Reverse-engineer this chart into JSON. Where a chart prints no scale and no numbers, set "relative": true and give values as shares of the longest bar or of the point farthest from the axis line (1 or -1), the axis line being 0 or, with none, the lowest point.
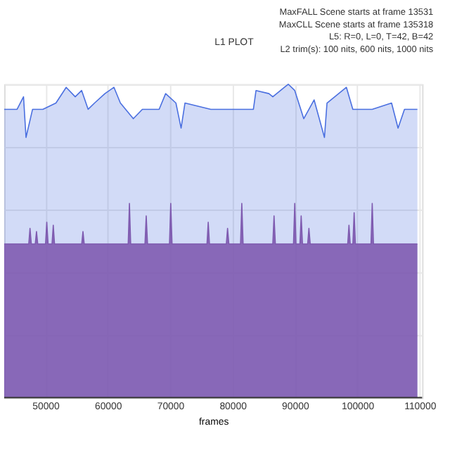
{
  "chart_data": {
    "type": "area",
    "title": "L1 PLOT",
    "xlabel": "frames",
    "relative": true,
    "grid": true,
    "annotations": [
      "MaxFALL Scene starts at frame 13531",
      "MaxCLL Scene starts at frame 135318",
      "L5: R=0, L=0, T=42, B=42",
      "L2 trim(s): 100 nits, 600 nits, 1000 nits"
    ],
    "xlim": [
      43400,
      110400
    ],
    "xticks": [
      50000,
      60000,
      70000,
      80000,
      90000,
      100000,
      110000
    ],
    "series": [
      {
        "color": "#4a6fe0",
        "x": [
          43400,
          45470,
          46500,
          46900,
          47950,
          49600,
          51700,
          53340,
          54790,
          55820,
          56860,
          57890,
          59550,
          61000,
          62030,
          64100,
          65550,
          68240,
          69280,
          70930,
          71760,
          72380,
          76520,
          79630,
          83350,
          83770,
          85840,
          86460,
          88320,
          88940,
          89980,
          91420,
          93080,
          94740,
          95150,
          98260,
          99290,
          102400,
          105500,
          106540,
          107570,
          109640
        ],
        "values": [
          0.92,
          0.92,
          0.96,
          0.83,
          0.92,
          0.92,
          0.94,
          0.99,
          0.96,
          0.98,
          0.92,
          0.94,
          0.97,
          0.99,
          0.94,
          0.89,
          0.92,
          0.92,
          0.97,
          0.94,
          0.86,
          0.94,
          0.92,
          0.92,
          0.92,
          0.98,
          0.97,
          0.96,
          0.99,
          1.0,
          0.98,
          0.89,
          0.95,
          0.83,
          0.94,
          0.99,
          0.92,
          0.92,
          0.94,
          0.86,
          0.92,
          0.92
        ]
      },
      {
        "color": "#7f5bb0",
        "x": [
          43400,
          47340,
          47540,
          47750,
          48380,
          48580,
          48780,
          50030,
          50230,
          50440,
          51070,
          51270,
          51470,
          55830,
          56030,
          56230,
          63280,
          63480,
          63680,
          65970,
          66170,
          66380,
          69900,
          70100,
          70310,
          75910,
          76110,
          76310,
          79010,
          79210,
          79420,
          81290,
          81490,
          81700,
          86460,
          86660,
          86870,
          89780,
          89980,
          90180,
          90810,
          91010,
          91220,
          92050,
          92250,
          92460,
          98470,
          98670,
          98870,
          99300,
          99500,
          99700,
          102200,
          102400,
          102600,
          109640
        ],
        "values": [
          0.49,
          0.49,
          0.54,
          0.49,
          0.49,
          0.53,
          0.49,
          0.49,
          0.56,
          0.49,
          0.49,
          0.55,
          0.49,
          0.49,
          0.53,
          0.49,
          0.49,
          0.62,
          0.49,
          0.49,
          0.58,
          0.49,
          0.49,
          0.62,
          0.49,
          0.49,
          0.56,
          0.49,
          0.49,
          0.54,
          0.49,
          0.49,
          0.62,
          0.49,
          0.49,
          0.58,
          0.49,
          0.49,
          0.62,
          0.49,
          0.49,
          0.58,
          0.49,
          0.49,
          0.54,
          0.49,
          0.49,
          0.55,
          0.49,
          0.49,
          0.59,
          0.49,
          0.49,
          0.62,
          0.49,
          0.49
        ]
      }
    ]
  }
}
